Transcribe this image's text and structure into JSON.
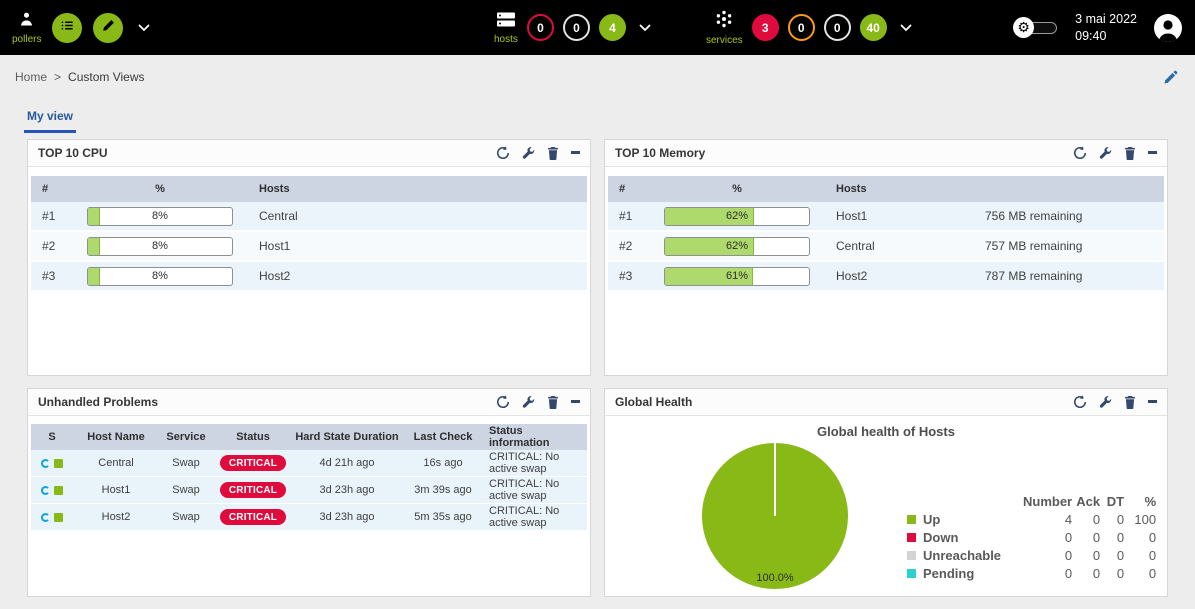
{
  "colors": {
    "brand_green": "#88b917",
    "status_red": "#e00b3d",
    "status_orange": "#ff9a13",
    "status_cyan": "#2ad1d1",
    "status_gray": "#d3d3d3",
    "panel_icon_navy": "#33486b",
    "link_blue": "#255a9b"
  },
  "topbar": {
    "pollers": {
      "label": "pollers"
    },
    "hosts": {
      "label": "hosts",
      "badges": [
        {
          "value": "0",
          "style": "outline-red"
        },
        {
          "value": "0",
          "style": "outline-white"
        },
        {
          "value": "4",
          "style": "solid-green"
        }
      ]
    },
    "services": {
      "label": "services",
      "badges": [
        {
          "value": "3",
          "style": "solid-red"
        },
        {
          "value": "0",
          "style": "outline-orange"
        },
        {
          "value": "0",
          "style": "outline-white"
        },
        {
          "value": "40",
          "style": "solid-green"
        }
      ]
    },
    "clock": {
      "date": "3 mai 2022",
      "time": "09:40"
    }
  },
  "breadcrumb": {
    "home": "Home",
    "separator": ">",
    "current": "Custom Views"
  },
  "tabs": {
    "my_view": "My view"
  },
  "panels": {
    "cpu": {
      "title": "TOP 10 CPU",
      "columns": {
        "rank": "#",
        "percent": "%",
        "hosts": "Hosts"
      },
      "rows": [
        {
          "rank": "#1",
          "percent": 8,
          "percent_label": "8%",
          "host": "Central"
        },
        {
          "rank": "#2",
          "percent": 8,
          "percent_label": "8%",
          "host": "Host1"
        },
        {
          "rank": "#3",
          "percent": 8,
          "percent_label": "8%",
          "host": "Host2"
        }
      ]
    },
    "memory": {
      "title": "TOP 10 Memory",
      "columns": {
        "rank": "#",
        "percent": "%",
        "hosts": "Hosts"
      },
      "rows": [
        {
          "rank": "#1",
          "percent": 62,
          "percent_label": "62%",
          "host": "Host1",
          "remaining": "756 MB remaining"
        },
        {
          "rank": "#2",
          "percent": 62,
          "percent_label": "62%",
          "host": "Central",
          "remaining": "757 MB remaining"
        },
        {
          "rank": "#3",
          "percent": 61,
          "percent_label": "61%",
          "host": "Host2",
          "remaining": "787 MB remaining"
        }
      ]
    },
    "problems": {
      "title": "Unhandled Problems",
      "columns": {
        "s": "S",
        "host": "Host Name",
        "service": "Service",
        "status": "Status",
        "duration": "Hard State Duration",
        "last_check": "Last Check",
        "info": "Status information"
      },
      "rows": [
        {
          "host": "Central",
          "service": "Swap",
          "status": "CRITICAL",
          "duration": "4d 21h ago",
          "last_check": "16s ago",
          "info": "CRITICAL: No active swap"
        },
        {
          "host": "Host1",
          "service": "Swap",
          "status": "CRITICAL",
          "duration": "3d 23h ago",
          "last_check": "3m 39s ago",
          "info": "CRITICAL: No active swap"
        },
        {
          "host": "Host2",
          "service": "Swap",
          "status": "CRITICAL",
          "duration": "3d 23h ago",
          "last_check": "5m 35s ago",
          "info": "CRITICAL: No active swap"
        }
      ]
    },
    "health": {
      "title": "Global Health",
      "chart_title": "Global health of Hosts",
      "pie_label": "100.0%",
      "headers": {
        "number": "Number",
        "ack": "Ack",
        "dt": "DT",
        "pct": "%"
      },
      "legend": [
        {
          "label": "Up",
          "color": "#88b917",
          "number": "4",
          "ack": "0",
          "dt": "0",
          "pct": "100"
        },
        {
          "label": "Down",
          "color": "#e00b3d",
          "number": "0",
          "ack": "0",
          "dt": "0",
          "pct": "0"
        },
        {
          "label": "Unreachable",
          "color": "#d3d3d3",
          "number": "0",
          "ack": "0",
          "dt": "0",
          "pct": "0"
        },
        {
          "label": "Pending",
          "color": "#2ad1d1",
          "number": "0",
          "ack": "0",
          "dt": "0",
          "pct": "0"
        }
      ]
    }
  },
  "chart_data": {
    "type": "pie",
    "title": "Global health of Hosts",
    "labels": [
      "Up",
      "Down",
      "Unreachable",
      "Pending"
    ],
    "values": [
      100,
      0,
      0,
      0
    ],
    "colors": [
      "#88b917",
      "#e00b3d",
      "#d3d3d3",
      "#2ad1d1"
    ]
  }
}
